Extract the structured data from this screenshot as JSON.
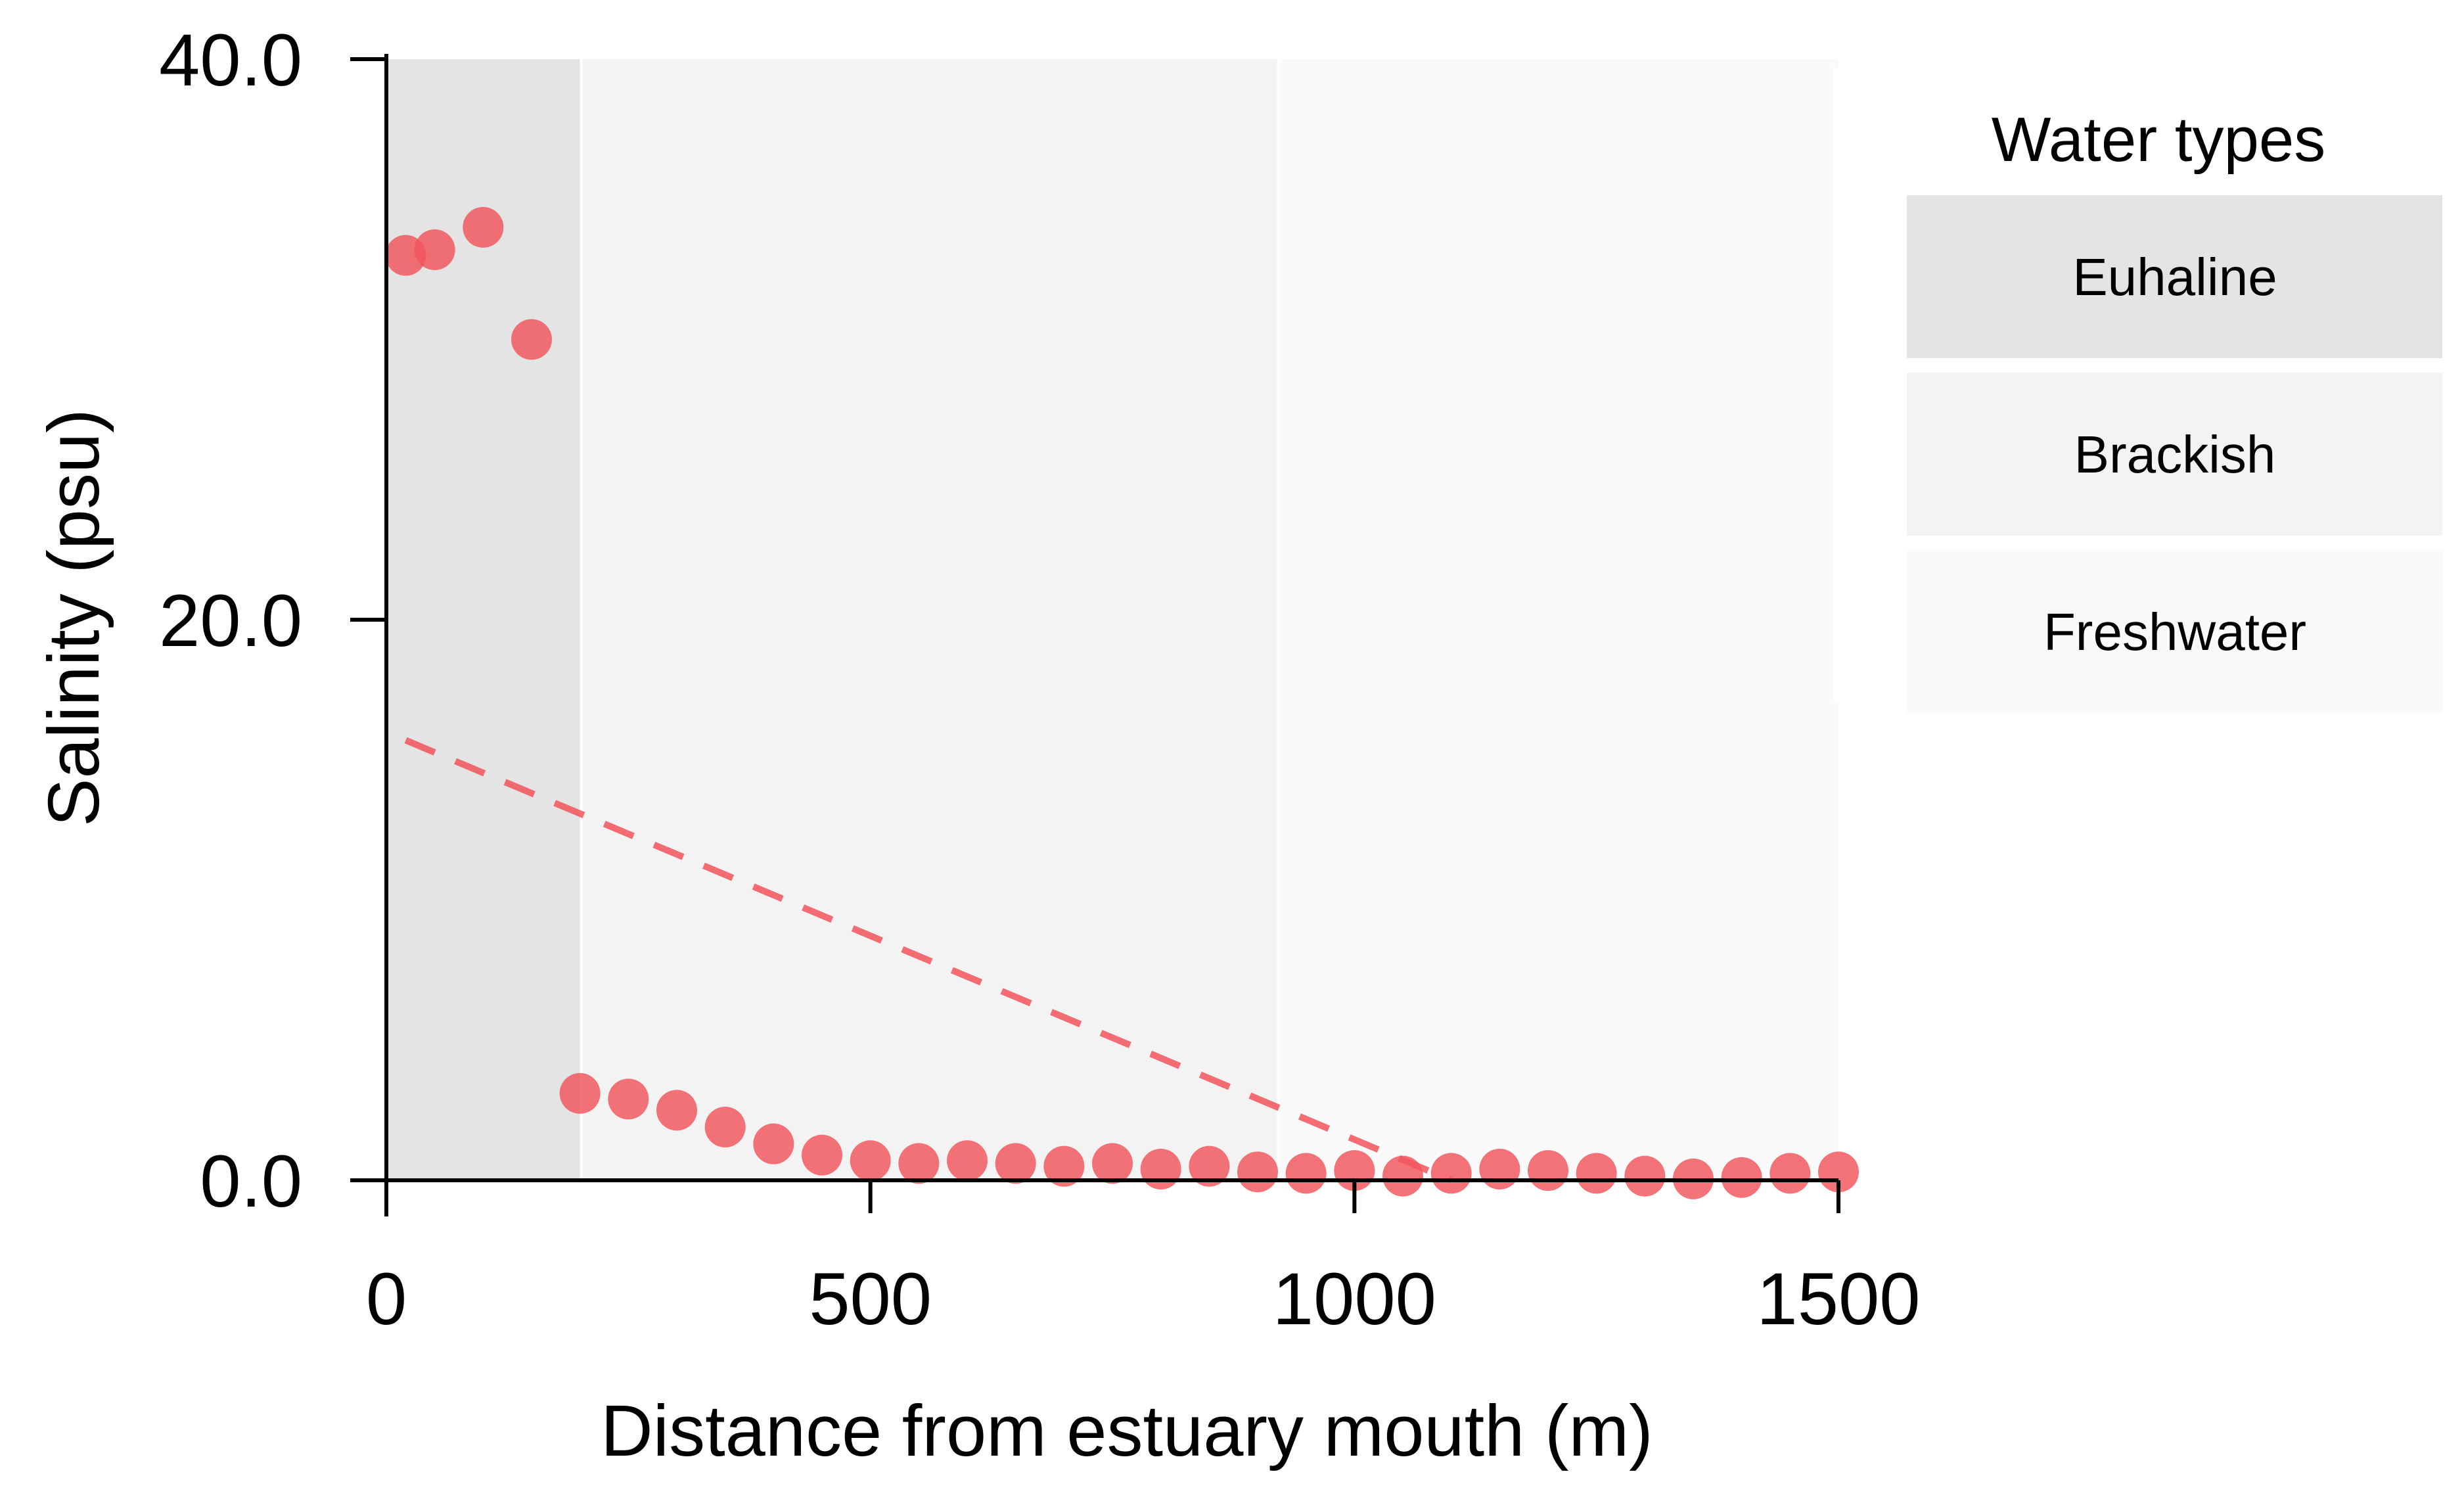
{
  "chart_data": {
    "type": "scatter",
    "xlabel": "Distance from estuary mouth (m)",
    "ylabel": "Salinity (psu)",
    "xlim": [
      0,
      1500
    ],
    "ylim": [
      0,
      40
    ],
    "xticks": [
      "0",
      "500",
      "1000",
      "1500"
    ],
    "yticks": [
      "0.0",
      "20.0",
      "40.0"
    ],
    "grid": false,
    "series": [
      {
        "type": "scatter",
        "color": "#f2545b",
        "points": [
          {
            "x": 20,
            "y": 33.0
          },
          {
            "x": 50,
            "y": 33.2
          },
          {
            "x": 100,
            "y": 34.0
          },
          {
            "x": 150,
            "y": 30.0
          },
          {
            "x": 200,
            "y": 3.1
          },
          {
            "x": 250,
            "y": 2.9
          },
          {
            "x": 300,
            "y": 2.5
          },
          {
            "x": 350,
            "y": 1.9
          },
          {
            "x": 400,
            "y": 1.3
          },
          {
            "x": 450,
            "y": 0.9
          },
          {
            "x": 500,
            "y": 0.7
          },
          {
            "x": 550,
            "y": 0.6
          },
          {
            "x": 600,
            "y": 0.7
          },
          {
            "x": 650,
            "y": 0.6
          },
          {
            "x": 700,
            "y": 0.5
          },
          {
            "x": 750,
            "y": 0.6
          },
          {
            "x": 800,
            "y": 0.4
          },
          {
            "x": 850,
            "y": 0.5
          },
          {
            "x": 900,
            "y": 0.3
          },
          {
            "x": 950,
            "y": 0.25
          },
          {
            "x": 1000,
            "y": 0.35
          },
          {
            "x": 1050,
            "y": 0.15
          },
          {
            "x": 1100,
            "y": 0.25
          },
          {
            "x": 1150,
            "y": 0.4
          },
          {
            "x": 1200,
            "y": 0.35
          },
          {
            "x": 1250,
            "y": 0.25
          },
          {
            "x": 1300,
            "y": 0.15
          },
          {
            "x": 1350,
            "y": 0.05
          },
          {
            "x": 1400,
            "y": 0.1
          },
          {
            "x": 1450,
            "y": 0.25
          },
          {
            "x": 1500,
            "y": 0.3
          }
        ]
      },
      {
        "type": "line",
        "style": "dashed",
        "color": "#f2545b",
        "points": [
          {
            "x": 20,
            "y": 15.7
          },
          {
            "x": 1100,
            "y": 0.0
          }
        ]
      }
    ],
    "bands": [
      {
        "label": "Euhaline",
        "x_start": 0,
        "x_end": 200,
        "color": "#e4e4e4"
      },
      {
        "label": "Brackish",
        "x_start": 200,
        "x_end": 920,
        "color": "#f3f3f3"
      },
      {
        "label": "Freshwater",
        "x_start": 920,
        "x_end": 1500,
        "color": "#fafafa"
      }
    ],
    "legend": {
      "title": "Water types",
      "position": "top-right",
      "items": [
        "Euhaline",
        "Brackish",
        "Freshwater"
      ]
    }
  }
}
